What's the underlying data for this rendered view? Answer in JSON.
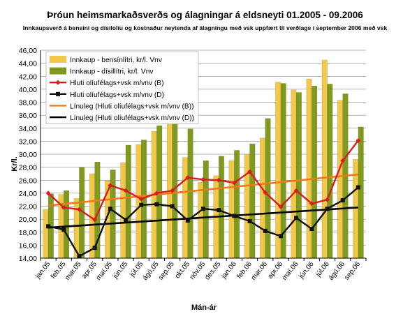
{
  "chart_data": {
    "type": "bar",
    "title": "Þróun heimsmarkaðsverðs og álagningar á eldsneyti  01.2005 - 09.2006",
    "subtitle": "Innkaupsverð á bensíni og dísilolíu og kostnaður neytenda af álagningu með vsk uppfært til verðlags í september 2006 með vsk",
    "xlabel": "Mán-ár",
    "ylabel": "Kr/l.",
    "ylim": [
      14,
      46
    ],
    "yticks": [
      "14,00",
      "16,00",
      "18,00",
      "20,00",
      "22,00",
      "24,00",
      "26,00",
      "28,00",
      "30,00",
      "32,00",
      "34,00",
      "36,00",
      "38,00",
      "40,00",
      "42,00",
      "44,00",
      "46,00"
    ],
    "categories": [
      "jan.05",
      "feb.05",
      "mar.05",
      "apr.05",
      "maí.05",
      "jún.05",
      "júl.05",
      "ágú.05",
      "sep.05",
      "okt.05",
      "nóv.05",
      "des.05",
      "jan.06",
      "feb.06",
      "mar.06",
      "apr.06",
      "maí.06",
      "jún.06",
      "júl.06",
      "ágú.06",
      "sep.06"
    ],
    "grid": true,
    "legend_position": "top-left",
    "bar_series": [
      {
        "name": "Innkaup - bensínlítri, kr/l. Vnv",
        "color": "#f2c84b",
        "values": [
          21.5,
          23.8,
          23.2,
          27.0,
          25.9,
          28.7,
          31.5,
          33.5,
          35.3,
          29.5,
          25.7,
          26.7,
          29.0,
          30.0,
          32.5,
          41.1,
          39.9,
          41.6,
          44.5,
          38.3,
          29.2
        ]
      },
      {
        "name": "Innkaup - dísillítri, kr/l. Vnv",
        "color": "#7f9a1e",
        "values": [
          23.9,
          24.4,
          28.0,
          28.8,
          27.6,
          31.4,
          32.2,
          34.4,
          35.0,
          33.9,
          29.0,
          29.7,
          30.6,
          31.6,
          35.5,
          40.9,
          39.5,
          40.5,
          40.8,
          39.3,
          34.2
        ]
      }
    ],
    "line_series": [
      {
        "name": "Hluti olíufélags+vsk m/vnv (B)",
        "color": "#d81d22",
        "marker": "diamond",
        "values": [
          24.0,
          21.8,
          21.5,
          19.9,
          25.2,
          24.4,
          23.1,
          24.0,
          24.4,
          26.4,
          26.1,
          26.0,
          25.6,
          27.3,
          24.1,
          21.9,
          24.4,
          22.4,
          23.0,
          29.0,
          32.1
        ]
      },
      {
        "name": "Hluti olíufélags+vsk m/vnv (D)",
        "color": "#111111",
        "marker": "square",
        "values": [
          18.9,
          18.4,
          14.3,
          15.6,
          21.6,
          19.9,
          22.2,
          22.3,
          22.0,
          19.8,
          21.6,
          21.4,
          20.5,
          19.7,
          18.2,
          17.4,
          20.2,
          18.5,
          21.6,
          22.9,
          24.9
        ]
      }
    ],
    "trend_series": [
      {
        "name": "Línuleg (Hluti olíufélags+vsk m/vnv (B))",
        "color": "#f07a1a",
        "start": 22.1,
        "end": 26.9
      },
      {
        "name": "Línuleg (Hluti olíufélags+vsk m/vnv (D))",
        "color": "#000000",
        "start": 18.7,
        "end": 21.8
      }
    ]
  },
  "colors": {
    "plot_background": "#ffffff",
    "gridline": "#6b6b6b",
    "legend_background": "#ffffff"
  }
}
